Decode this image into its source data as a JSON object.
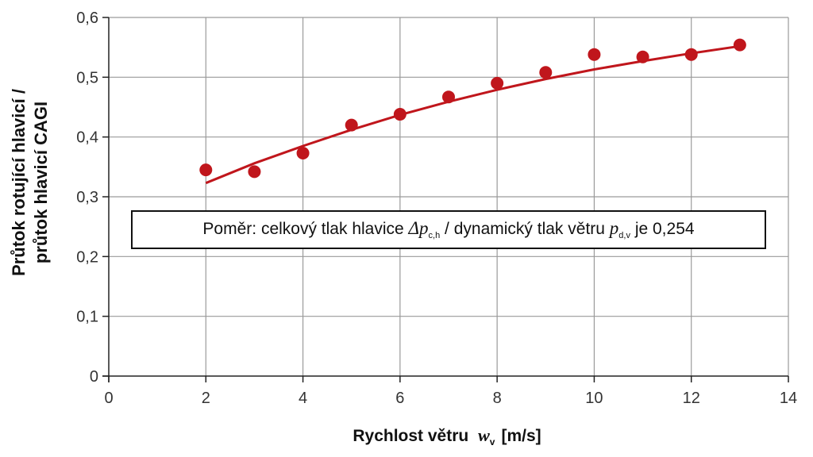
{
  "chart_data": {
    "type": "scatter",
    "xlabel_prefix": "Rychlost větru",
    "xlabel_symbol": "w",
    "xlabel_subscript": "v",
    "xlabel_unit": "[m/s]",
    "ylabel_line1": "Průtok rotující hlavicí /",
    "ylabel_line2": "průtok hlavicí CAGI",
    "xlim": [
      0,
      14
    ],
    "ylim": [
      0,
      0.6
    ],
    "x_ticks": [
      0,
      2,
      4,
      6,
      8,
      10,
      12,
      14
    ],
    "x_tick_labels": [
      "0",
      "2",
      "4",
      "6",
      "8",
      "10",
      "12",
      "14"
    ],
    "y_ticks": [
      0,
      0.1,
      0.2,
      0.3,
      0.4,
      0.5,
      0.6
    ],
    "y_tick_labels": [
      "0",
      "0,1",
      "0,2",
      "0,3",
      "0,4",
      "0,5",
      "0,6"
    ],
    "grid": true,
    "color": "#c0161c",
    "points": {
      "x": [
        2,
        3,
        4,
        5,
        6,
        7,
        8,
        9,
        10,
        11,
        12,
        13
      ],
      "y": [
        0.345,
        0.342,
        0.373,
        0.42,
        0.438,
        0.467,
        0.49,
        0.508,
        0.538,
        0.534,
        0.538,
        0.554
      ]
    },
    "trend": {
      "x": [
        2,
        3,
        4,
        5,
        6,
        7,
        8,
        9,
        10,
        11,
        12,
        13
      ],
      "y": [
        0.323,
        0.356,
        0.385,
        0.412,
        0.437,
        0.459,
        0.479,
        0.497,
        0.513,
        0.527,
        0.54,
        0.552
      ]
    },
    "annotation": {
      "prefix": "Poměr: celkový tlak hlavice ",
      "sym1": "Δp",
      "sub1": "c,h",
      "middle": " / dynamický tlak větru ",
      "sym2": "p",
      "sub2": "d,v",
      "suffix": " je 0,254"
    }
  }
}
